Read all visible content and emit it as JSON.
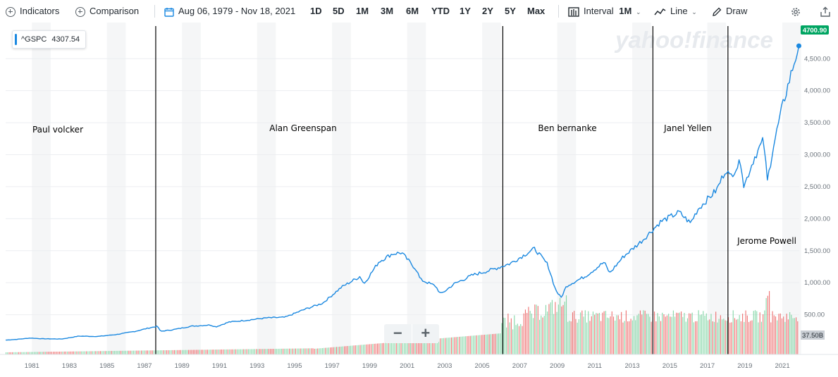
{
  "toolbar": {
    "indicators": "Indicators",
    "comparison": "Comparison",
    "date_range": "Aug 06, 1979 - Nov 18, 2021",
    "ranges": [
      "1D",
      "5D",
      "1M",
      "3M",
      "6M",
      "YTD",
      "1Y",
      "2Y",
      "5Y",
      "Max"
    ],
    "interval_label": "Interval",
    "interval_value": "1M",
    "chart_type": "Line",
    "draw": "Draw"
  },
  "ticker": {
    "symbol": "^GSPC",
    "value": "4307.54"
  },
  "watermark": "yahoo!finance",
  "last_price_label": "4700.90",
  "volume_label": "37.50B",
  "zoom": {
    "minus": "−",
    "plus": "+"
  },
  "colors": {
    "line": "#1a88e0",
    "price_badge": "#00a562",
    "volume_up": "#6fcf97",
    "volume_down": "#eb5757"
  },
  "chart_data": {
    "type": "line",
    "x_ticks": [
      "1981",
      "1983",
      "1985",
      "1987",
      "1989",
      "1991",
      "1993",
      "1995",
      "1997",
      "1999",
      "2001",
      "2003",
      "2005",
      "2007",
      "2009",
      "2011",
      "2013",
      "2015",
      "2017",
      "2019",
      "2021"
    ],
    "y_ticks": [
      "500.00",
      "1,000.00",
      "1,500.00",
      "2,000.00",
      "2,500.00",
      "3,000.00",
      "3,500.00",
      "4,000.00",
      "4,500.00"
    ],
    "ylim": [
      0,
      4800
    ],
    "xlim": [
      1979.6,
      2021.9
    ],
    "grid": true,
    "series": [
      {
        "name": "^GSPC",
        "x": [
          1979.6,
          1980.2,
          1980.9,
          1981.5,
          1982.6,
          1983.5,
          1984.5,
          1985.5,
          1986.5,
          1987.2,
          1987.7,
          1987.85,
          1988.5,
          1989.5,
          1990.5,
          1990.8,
          1991.5,
          1992.5,
          1993.5,
          1994.5,
          1995.5,
          1996.5,
          1997.5,
          1998.5,
          1998.7,
          1999.5,
          2000.2,
          2000.7,
          2001.5,
          2001.7,
          2002.5,
          2002.8,
          2003.5,
          2004.5,
          2005.5,
          2006.5,
          2007.5,
          2007.8,
          2008.5,
          2008.9,
          2009.2,
          2009.5,
          2010.5,
          2011.5,
          2011.8,
          2012.5,
          2013.5,
          2014.5,
          2015.5,
          2016.1,
          2016.5,
          2017.5,
          2018.0,
          2018.2,
          2018.8,
          2018.95,
          2019.5,
          2020.0,
          2020.2,
          2020.5,
          2021.0,
          2021.5,
          2021.88
        ],
        "y": [
          103,
          115,
          135,
          125,
          120,
          165,
          160,
          190,
          240,
          290,
          320,
          240,
          265,
          320,
          340,
          310,
          385,
          415,
          450,
          460,
          580,
          680,
          930,
          1100,
          980,
          1330,
          1450,
          1470,
          1200,
          1050,
          950,
          820,
          980,
          1120,
          1200,
          1300,
          1480,
          1530,
          1280,
          900,
          760,
          950,
          1100,
          1320,
          1150,
          1400,
          1650,
          1950,
          2100,
          1930,
          2150,
          2450,
          2780,
          2650,
          2900,
          2500,
          2950,
          3230,
          2580,
          3100,
          3750,
          4300,
          4700
        ]
      }
    ],
    "annotations": [
      {
        "label": "Paul volcker",
        "x": 1979.6
      },
      {
        "label": "Alan Greenspan",
        "x": 1987.6
      },
      {
        "label": "Ben bernanke",
        "x": 2006.1
      },
      {
        "label": "Janel Yellen",
        "x": 2014.1
      },
      {
        "label": "Jerome Powell",
        "x": 2018.1
      }
    ]
  }
}
